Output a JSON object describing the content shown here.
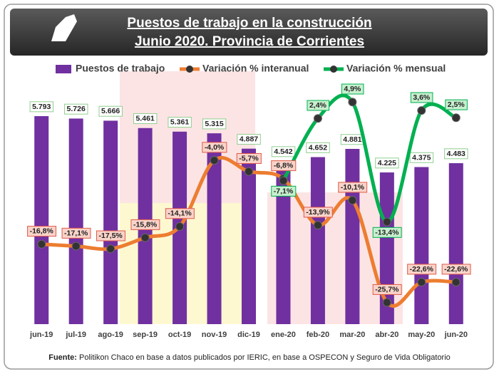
{
  "chart_data": {
    "type": "bar",
    "title": "Puestos de trabajo en la construcción",
    "subtitle": "Junio 2020. Provincia de Corrientes",
    "categories": [
      "jun-19",
      "jul-19",
      "ago-19",
      "sep-19",
      "oct-19",
      "nov-19",
      "dic-19",
      "ene-20",
      "feb-20",
      "mar-20",
      "abr-20",
      "may-20",
      "jun-20"
    ],
    "series": [
      {
        "name": "Puestos de trabajo",
        "type": "bar",
        "color": "#7030a0",
        "values": [
          5793,
          5726,
          5666,
          5461,
          5361,
          5315,
          4887,
          4542,
          4652,
          4881,
          4225,
          4375,
          4483
        ],
        "value_labels": [
          "5.793",
          "5.726",
          "5.666",
          "5.461",
          "5.361",
          "5.315",
          "4.887",
          "4.542",
          "4.652",
          "4.881",
          "4.225",
          "4.375",
          "4.483"
        ]
      },
      {
        "name": "Variación % interanual",
        "type": "line",
        "axis": "y2",
        "color": "#ed7d31",
        "values": [
          -16.8,
          -17.1,
          -17.5,
          -15.8,
          -14.1,
          -4.0,
          -5.7,
          -6.8,
          -13.9,
          -10.1,
          -25.7,
          -22.6,
          -22.6
        ],
        "value_labels": [
          "-16,8%",
          "-17,1%",
          "-17,5%",
          "-15,8%",
          "-14,1%",
          "-4,0%",
          "-5,7%",
          "-6,8%",
          "-13,9%",
          "-10,1%",
          "-25,7%",
          "-22,6%",
          "-22,6%"
        ]
      },
      {
        "name": "Variación % mensual",
        "type": "line",
        "axis": "y2",
        "color": "#00b050",
        "values": [
          null,
          null,
          null,
          null,
          null,
          null,
          null,
          -7.1,
          2.4,
          4.9,
          -13.4,
          3.6,
          2.5
        ],
        "value_labels": [
          null,
          null,
          null,
          null,
          null,
          null,
          null,
          "-7,1%",
          "2,4%",
          "4,9%",
          "-13,4%",
          "3,6%",
          "2,5%"
        ]
      }
    ],
    "ylim": [
      0,
      6250
    ],
    "y2lim": [
      -29,
      5.25
    ],
    "source_label": "Fuente:",
    "source": "Politikon Chaco en base a datos publicados por IERIC, en base a OSPECON y Seguro de Vida Obligatorio"
  }
}
